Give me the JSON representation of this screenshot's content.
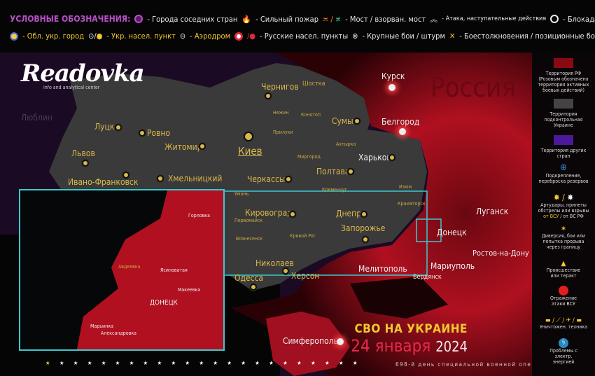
{
  "legend_header": {
    "title": "УСЛОВНЫЕ ОБОЗНАЧЕНИЯ:",
    "items_row1": [
      "- Города соседних стран",
      "- Сильный пожар",
      "- Мост / взорван. мост",
      "- Атака, наступательные действия",
      "- Блокада"
    ],
    "items_row2": [
      "- Обл. укр. город",
      "- Укр. насел. пункт",
      "- Аэродром",
      "- Русские  насел. пункты",
      "- Крупные бои / штурм",
      "- Боестолкновения / позиционные бои"
    ]
  },
  "logo": {
    "name": "Readovka",
    "subtitle": "info and analytical center"
  },
  "side_legend": [
    "Территория РФ (Розовым обозначена территория активных боевых действий)",
    "Территория подконтрольная Украине",
    "Территория других стран",
    "Подкрепление, переброска резервов",
    "Артудары, прилеты обстрелы или взрывы",
    "от ВСУ",
    "/ от ВС РФ",
    "Диверсия, бои или попытка прорыва через границу",
    "Происшествие или теракт",
    "Отражение атаки ВСУ",
    "Уничтожен. техника",
    "Проблемы с электр. энергией"
  ],
  "colors": {
    "russia": "#8a0a14",
    "ukraine": "#3a3a3a",
    "other": "#3d1466",
    "accent": "#f0c830",
    "date": "#e8284a",
    "inset": "#3cc8d0"
  },
  "cities": [
    "Чернигов",
    "Шостка",
    "Курск",
    "Россия",
    "Луцк",
    "Ровно",
    "Житомир",
    "Киев",
    "Львов",
    "Ивано-Франковск",
    "Хмельницкий",
    "Сумы",
    "Белгород",
    "Харьков",
    "Полтава",
    "Черкассы",
    "Кировоград",
    "Днепр",
    "Запорожье",
    "Кривой Рог",
    "Луганск",
    "Донецк",
    "Николаев",
    "Херсон",
    "Мелитополь",
    "Мариуполь",
    "Одесса",
    "Ростов-на-Дону",
    "Бердянск",
    "Симферополь",
    "Люблин",
    "Изюм",
    "Краматорск",
    "Кременчуг",
    "Миргород",
    "Прилуки",
    "Конотоп",
    "Нежин",
    "Ахтырка",
    "Умань",
    "Первомайск",
    "Вознесенск"
  ],
  "inset_cities": [
    "ДОНЕЦК",
    "Горловка",
    "Авдеевка",
    "Макеевка",
    "Марьинка",
    "Ясиноватая",
    "Александровка"
  ],
  "title": {
    "line1": "СВО НА УКРАИНЕ",
    "date": "24 января",
    "year": "2024",
    "subtitle": "698-й день специальной военной операции"
  }
}
